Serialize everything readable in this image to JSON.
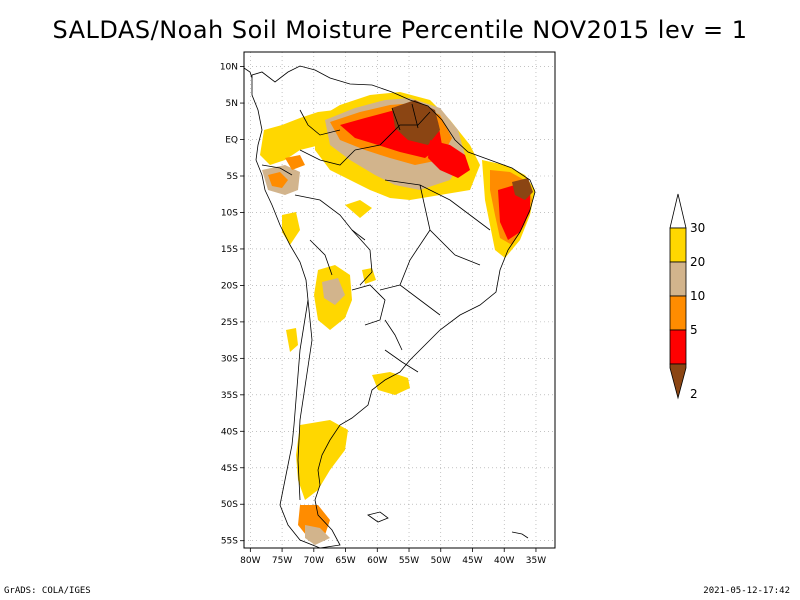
{
  "title": "SALDAS/Noah Soil Moisture Percentile NOV2015 lev = 1",
  "footer": {
    "left": "GrADS: COLA/IGES",
    "right": "2021-05-12-17:42"
  },
  "map": {
    "lon_range": [
      -81,
      -32
    ],
    "lat_range": [
      -56,
      12
    ],
    "lat_ticks": [
      {
        "value": 10,
        "label": "10N"
      },
      {
        "value": 5,
        "label": "5N"
      },
      {
        "value": 0,
        "label": "EQ"
      },
      {
        "value": -5,
        "label": "5S"
      },
      {
        "value": -10,
        "label": "10S"
      },
      {
        "value": -15,
        "label": "15S"
      },
      {
        "value": -20,
        "label": "20S"
      },
      {
        "value": -25,
        "label": "25S"
      },
      {
        "value": -30,
        "label": "30S"
      },
      {
        "value": -35,
        "label": "35S"
      },
      {
        "value": -40,
        "label": "40S"
      },
      {
        "value": -45,
        "label": "45S"
      },
      {
        "value": -50,
        "label": "50S"
      },
      {
        "value": -55,
        "label": "55S"
      }
    ],
    "lon_ticks": [
      {
        "value": -80,
        "label": "80W"
      },
      {
        "value": -75,
        "label": "75W"
      },
      {
        "value": -70,
        "label": "70W"
      },
      {
        "value": -65,
        "label": "65W"
      },
      {
        "value": -60,
        "label": "60W"
      },
      {
        "value": -55,
        "label": "55W"
      },
      {
        "value": -50,
        "label": "50W"
      },
      {
        "value": -45,
        "label": "45W"
      },
      {
        "value": -40,
        "label": "40W"
      },
      {
        "value": -35,
        "label": "35W"
      }
    ],
    "grid": true
  },
  "legend": {
    "levels": [
      {
        "label": "2",
        "color": "#8b4513"
      },
      {
        "label": "5",
        "color": "#ff0000"
      },
      {
        "label": "10",
        "color": "#ff8c00"
      },
      {
        "label": "20",
        "color": "#d2b48c"
      },
      {
        "label": "30",
        "color": "#ffd700"
      }
    ],
    "top_color": "#ffffff"
  },
  "colors": {
    "percentile_2": "#8b4513",
    "percentile_5": "#ff0000",
    "percentile_10": "#ff8c00",
    "percentile_20": "#d2b48c",
    "percentile_30": "#ffd700",
    "coastline": "#000000",
    "grid": "#a0a0a0"
  }
}
